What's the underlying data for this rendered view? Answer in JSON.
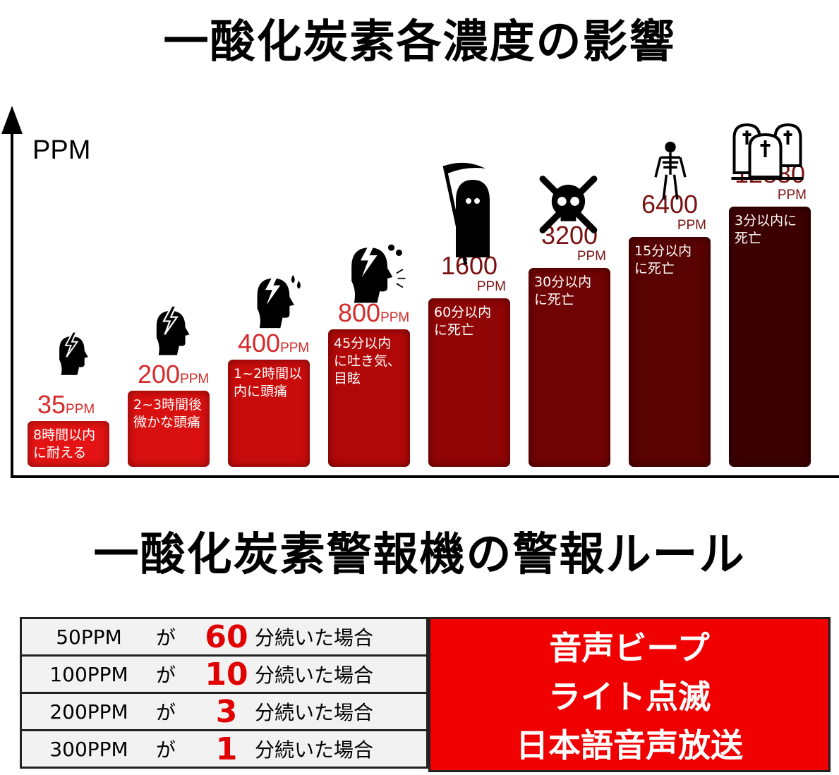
{
  "title": "一酸化炭素各濃度の影響",
  "alarm_title": "一酸化炭素警報機の警報ルール",
  "chart_data": {
    "type": "bar",
    "ylabel": "PPM",
    "unit": "PPM",
    "categories": [
      "35",
      "200",
      "400",
      "800",
      "1600",
      "3200",
      "6400",
      "12880"
    ],
    "values": [
      35,
      200,
      400,
      800,
      1600,
      3200,
      6400,
      12880
    ],
    "bar_texts": [
      "8時間以内に耐える",
      "2~3時間後微かな頭痛",
      "1~2時間以内に頭痛",
      "45分以内に吐き気、目眩",
      "60分以内に死亡",
      "30分以内に死亡",
      "15分以内に死亡",
      "3分以内に死亡"
    ],
    "icons": [
      "headache-head-icon",
      "headache-head-icon",
      "headache-sweat-head-icon",
      "dizzy-head-icon",
      "grim-reaper-icon",
      "skull-crossbones-icon",
      "skeleton-icon",
      "graves-icon"
    ],
    "colors": [
      "#e41414",
      "#d81010",
      "#c80c0c",
      "#b00808",
      "#900505",
      "#700303",
      "#580202",
      "#3c0000"
    ]
  },
  "rules": [
    {
      "ppm": "50PPM",
      "ga": "が",
      "minutes": "60",
      "suffix": "分続いた場合"
    },
    {
      "ppm": "100PPM",
      "ga": "が",
      "minutes": "10",
      "suffix": "分続いた場合"
    },
    {
      "ppm": "200PPM",
      "ga": "が",
      "minutes": "3",
      "suffix": "分続いた場合"
    },
    {
      "ppm": "300PPM",
      "ga": "が",
      "minutes": "1",
      "suffix": "分続いた場合"
    }
  ],
  "actions": [
    "音声ビープ",
    "ライト点滅",
    "日本語音声放送"
  ]
}
